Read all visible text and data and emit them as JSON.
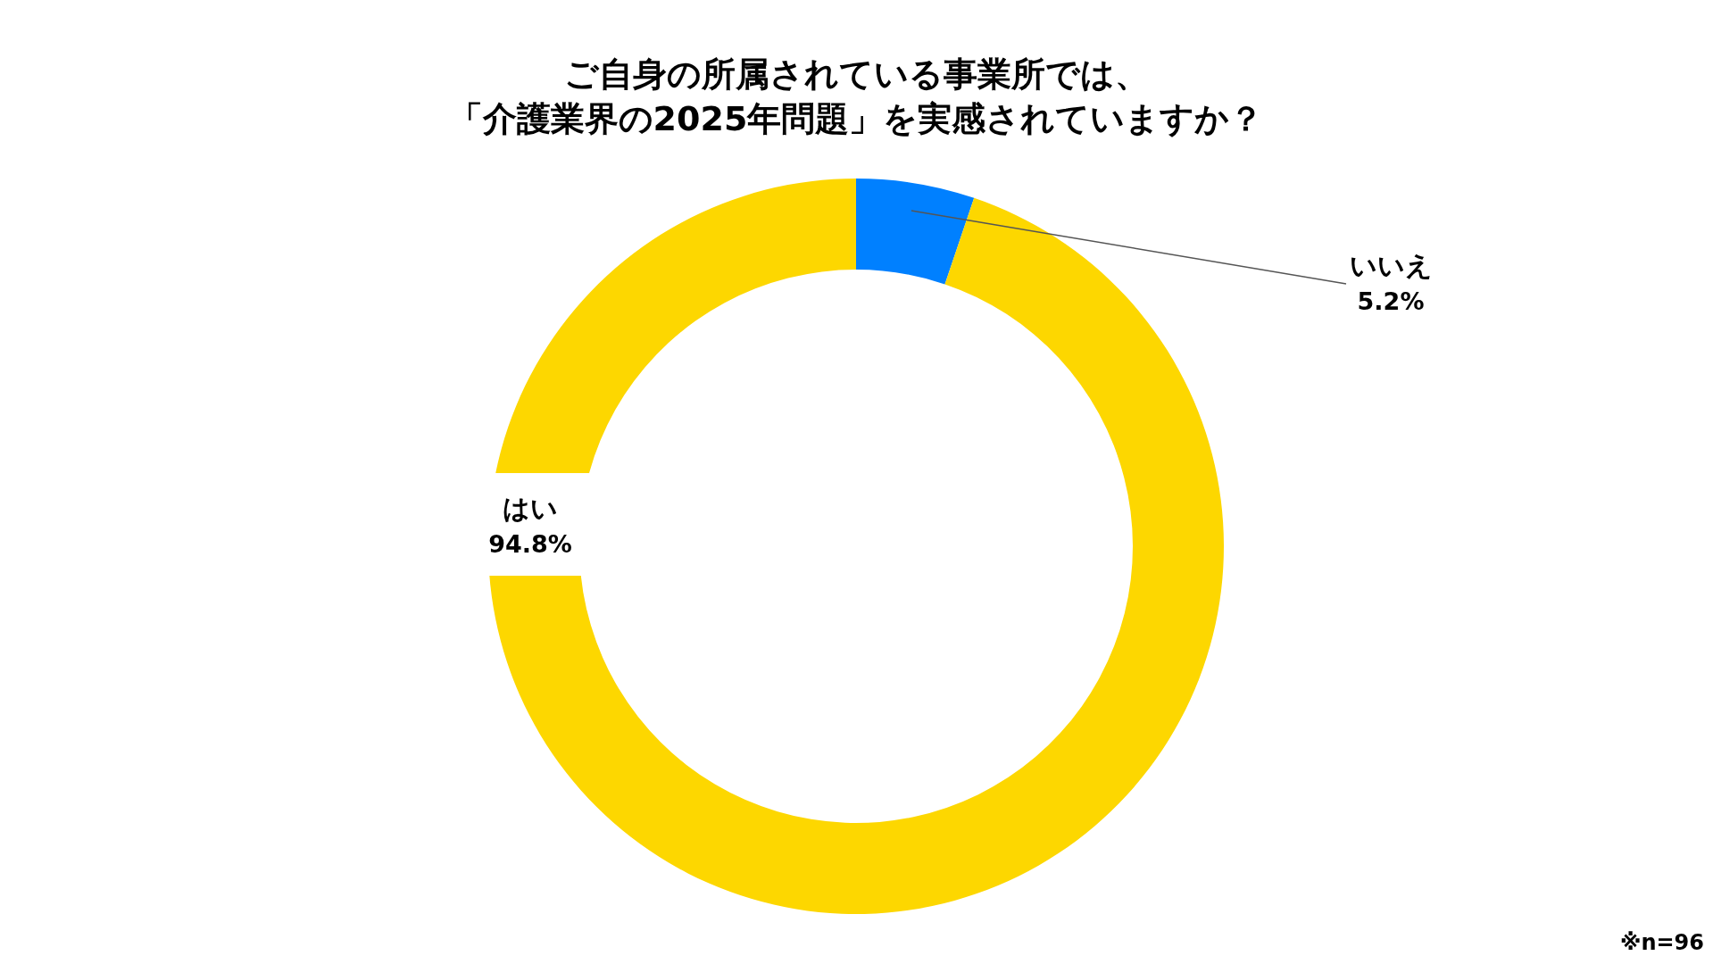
{
  "chart_data": {
    "type": "donut",
    "title": "ご自身の所属されている事業所では、「介護業界の2025年問題」を実感されていますか？",
    "categories": [
      "いいえ",
      "はい"
    ],
    "values": [
      5.2,
      94.8
    ],
    "colors": [
      "#0080ff",
      "#fdd700"
    ],
    "value_labels": [
      "5.2%",
      "94.8%"
    ],
    "annotations": [
      "※n=96"
    ]
  }
}
